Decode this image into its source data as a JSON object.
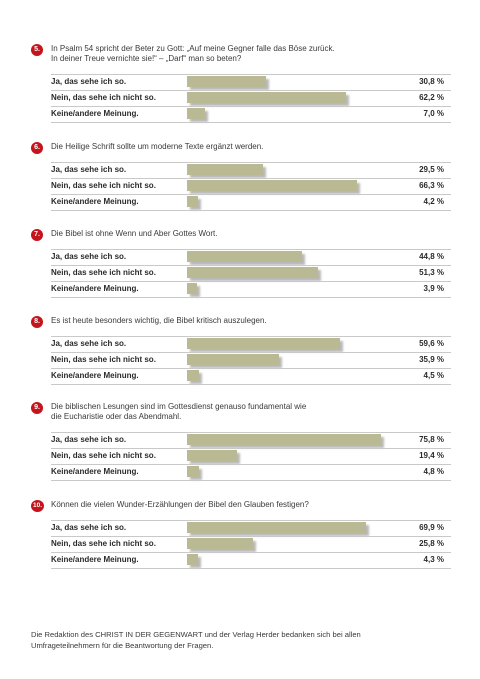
{
  "chart_data": {
    "type": "bar",
    "orientation": "horizontal",
    "questions": [
      {
        "number": "5.",
        "text_lines": [
          "In Psalm 54 spricht der Beter zu Gott: „Auf meine Gegner falle das Böse zurück.",
          "In deiner Treue vernichte sie!“ – „Darf“ man so beten?"
        ],
        "categories": [
          "Ja, das sehe ich so.",
          "Nein, das sehe ich nicht so.",
          "Keine/andere Meinung."
        ],
        "values": [
          30.8,
          62.2,
          7.0
        ],
        "labels": [
          "30,8 %",
          "62,2 %",
          "7,0 %"
        ]
      },
      {
        "number": "6.",
        "text_lines": [
          "Die Heilige Schrift sollte um moderne Texte ergänzt werden."
        ],
        "categories": [
          "Ja, das sehe ich so.",
          "Nein, das sehe ich nicht so.",
          "Keine/andere Meinung."
        ],
        "values": [
          29.5,
          66.3,
          4.2
        ],
        "labels": [
          "29,5 %",
          "66,3 %",
          "4,2 %"
        ]
      },
      {
        "number": "7.",
        "text_lines": [
          "Die Bibel ist ohne Wenn und Aber Gottes Wort."
        ],
        "categories": [
          "Ja, das sehe ich so.",
          "Nein, das sehe ich nicht so.",
          "Keine/andere Meinung."
        ],
        "values": [
          44.8,
          51.3,
          3.9
        ],
        "labels": [
          "44,8 %",
          "51,3 %",
          "3,9 %"
        ]
      },
      {
        "number": "8.",
        "text_lines": [
          "Es ist heute besonders wichtig, die Bibel kritisch auszulegen."
        ],
        "categories": [
          "Ja, das sehe ich so.",
          "Nein, das sehe ich nicht so.",
          "Keine/andere Meinung."
        ],
        "values": [
          59.6,
          35.9,
          4.5
        ],
        "labels": [
          "59,6 %",
          "35,9 %",
          "4,5 %"
        ]
      },
      {
        "number": "9.",
        "text_lines": [
          "Die biblischen Lesungen sind im Gottesdienst genauso fundamental wie",
          "die Eucharistie oder das Abendmahl."
        ],
        "categories": [
          "Ja, das sehe ich so.",
          "Nein, das sehe ich nicht so.",
          "Keine/andere Meinung."
        ],
        "values": [
          75.8,
          19.4,
          4.8
        ],
        "labels": [
          "75,8 %",
          "19,4 %",
          "4,8 %"
        ]
      },
      {
        "number": "10.",
        "text_lines": [
          "Können die vielen Wunder-Erzählungen der Bibel den Glauben festigen?"
        ],
        "categories": [
          "Ja, das sehe ich so.",
          "Nein, das sehe ich nicht so.",
          "Keine/andere Meinung."
        ],
        "values": [
          69.9,
          25.8,
          4.3
        ],
        "labels": [
          "69,9 %",
          "25,8 %",
          "4,3 %"
        ]
      }
    ],
    "xlim": [
      0,
      100
    ],
    "unit": "%",
    "colors": {
      "bar": "#b9b994",
      "badge": "#c4141d",
      "rule": "#c9c9c9"
    }
  },
  "footer": {
    "line1": "Die Redaktion des CHRIST IN DER GEGENWART und der Verlag Herder bedanken sich bei allen",
    "line2": "Umfrageteilnehmern für die Beantwortung der Fragen."
  }
}
